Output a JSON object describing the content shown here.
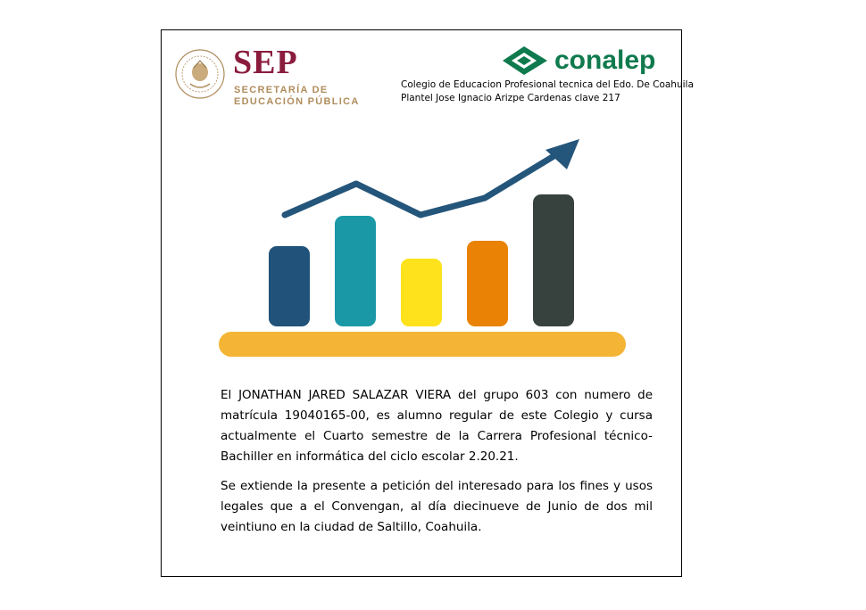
{
  "header": {
    "sep_seal_icon": "mexican-coat-of-arms-icon",
    "sep_title": "SEP",
    "sep_subtitle_line1": "SECRETARÍA DE",
    "sep_subtitle_line2": "EDUCACIÓN PÚBLICA",
    "conalep_logo_icon": "conalep-logo-icon",
    "conalep_name": "conalep",
    "college_line1": "Colegio de Educacion Profesional tecnica del Edo. De Coahuila",
    "college_line2": "Plantel Jose Ignacio Arizpe Cardenas clave 217"
  },
  "illustration": {
    "icon": "growth-chart-icon",
    "bar_colors": [
      "#20527a",
      "#1a98a6",
      "#fde21c",
      "#ea8205",
      "#37423f"
    ],
    "bar_levels": [
      0.45,
      0.62,
      0.38,
      0.48,
      0.74
    ],
    "arrow_color": "#24557a",
    "base_color": "#f4b536"
  },
  "body": {
    "paragraph1": "El JONATHAN JARED SALAZAR VIERA del grupo 603 con numero de matrícula 19040165-00, es alumno regular de este Colegio y cursa actualmente el Cuarto semestre de la Carrera Profesional técnico-Bachiller en informática del ciclo escolar 2.20.21.",
    "paragraph2": "Se extiende la presente a petición del interesado para los fines y usos legales que a el Convengan, al día diecinueve de Junio de dos mil veintiuno en la ciudad de Saltillo, Coahuila."
  }
}
